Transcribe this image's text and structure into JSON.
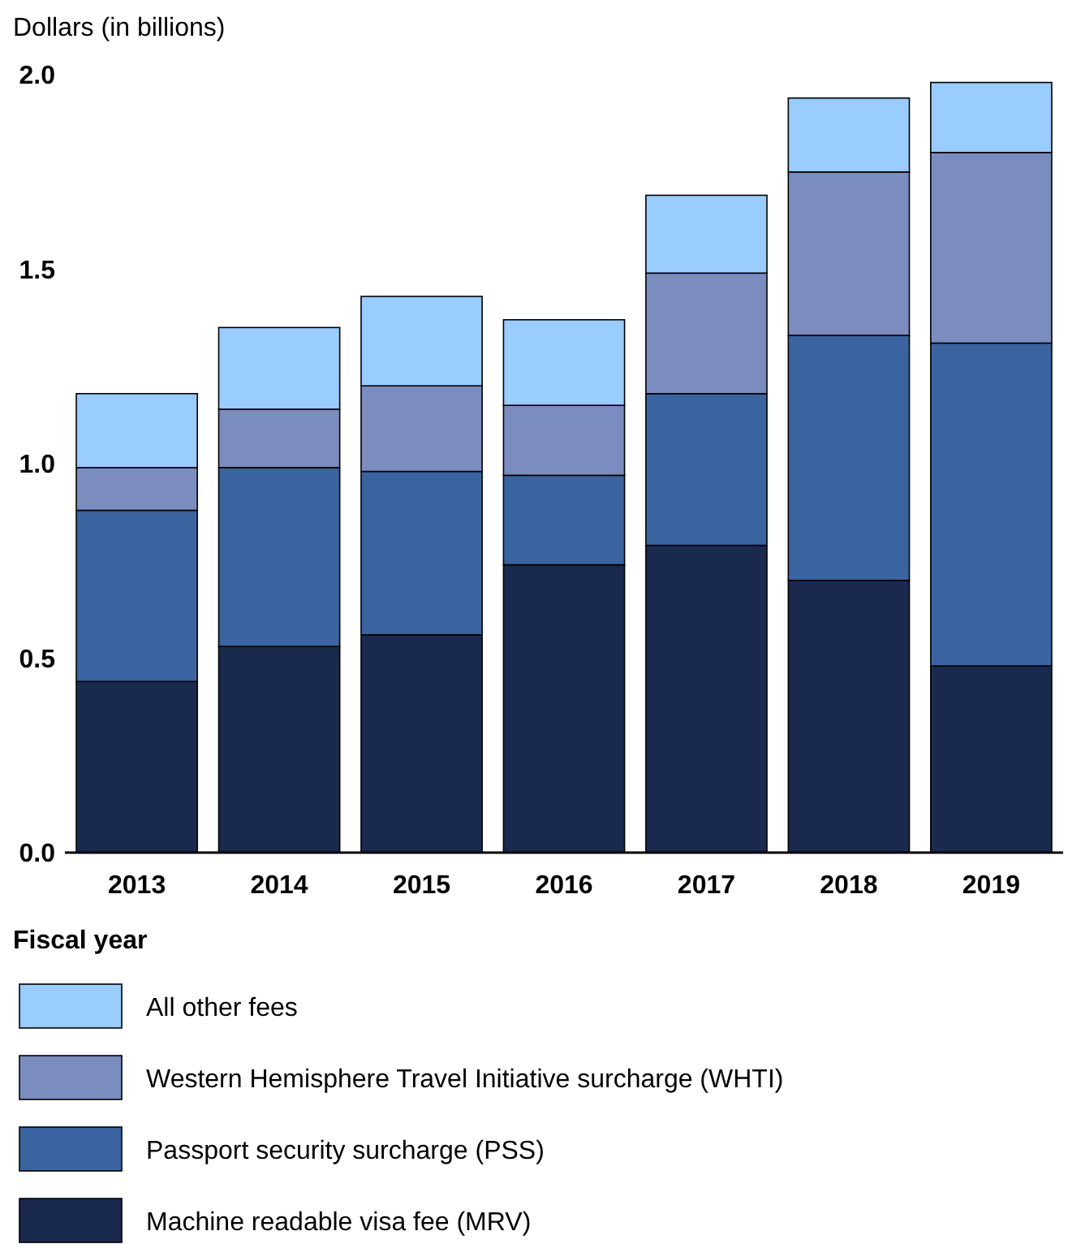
{
  "chart_data": {
    "type": "bar",
    "stacked": true,
    "ylabel": "Dollars (in billions)",
    "xlabel": "Fiscal year",
    "categories": [
      "2013",
      "2014",
      "2015",
      "2016",
      "2017",
      "2018",
      "2019"
    ],
    "series": [
      {
        "name": "Machine readable visa fee (MRV)",
        "color": "#1a2a4f",
        "values": [
          0.44,
          0.53,
          0.56,
          0.74,
          0.79,
          0.7,
          0.48
        ]
      },
      {
        "name": "Passport security surcharge (PSS)",
        "color": "#3a64a0",
        "values": [
          0.44,
          0.46,
          0.42,
          0.23,
          0.39,
          0.63,
          0.83
        ]
      },
      {
        "name": "Western Hemisphere Travel Initiative surcharge (WHTI)",
        "color": "#7b8cbf",
        "values": [
          0.11,
          0.15,
          0.22,
          0.18,
          0.31,
          0.42,
          0.49
        ]
      },
      {
        "name": "All other fees",
        "color": "#99ccff",
        "values": [
          0.19,
          0.21,
          0.23,
          0.22,
          0.2,
          0.19,
          0.18
        ]
      }
    ],
    "ylim": [
      0,
      2
    ],
    "yticks": [
      {
        "value": 0,
        "label": "0.0"
      },
      0.5,
      {
        "value": 1,
        "label": "1.0"
      },
      1.5,
      {
        "value": 2,
        "label": "2.0"
      }
    ],
    "grid": false,
    "legend": "bottom"
  }
}
